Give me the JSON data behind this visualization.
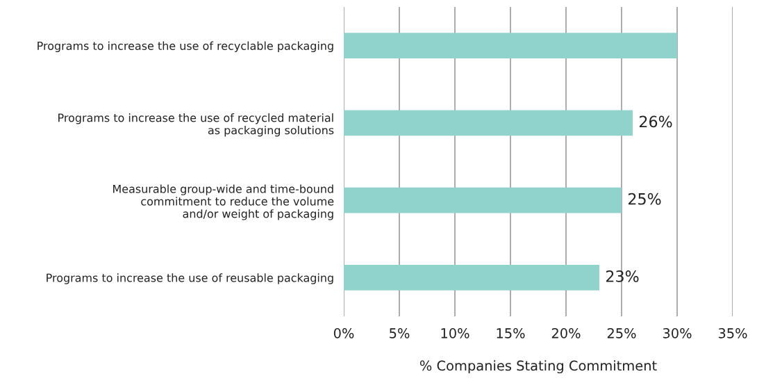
{
  "chart_data": {
    "type": "bar",
    "orientation": "horizontal",
    "xlabel": "% Companies Stating Commitment",
    "categories": [
      "Programs to increase the use of recyclable packaging",
      "Programs to increase the use of recycled material\nas packaging solutions",
      "Measurable group-wide and time-bound\ncommitment to reduce the volume\nand/or weight of packaging",
      "Programs to increase the use of reusable packaging"
    ],
    "values": [
      30,
      26,
      25,
      23
    ],
    "value_labels": [
      null,
      "26%",
      "25%",
      "23%"
    ],
    "color": "#8fd3cc",
    "xlim": [
      0,
      35
    ],
    "xticks": [
      {
        "value": 0,
        "label": "0%"
      },
      {
        "value": 5,
        "label": "5%"
      },
      {
        "value": 10,
        "label": "10%"
      },
      {
        "value": 15,
        "label": "15%"
      },
      {
        "value": 20,
        "label": "20%"
      },
      {
        "value": 25,
        "label": "25%"
      },
      {
        "value": 30,
        "label": "30%"
      },
      {
        "value": 35,
        "label": "35%"
      }
    ],
    "grid": "x",
    "legend": false
  }
}
